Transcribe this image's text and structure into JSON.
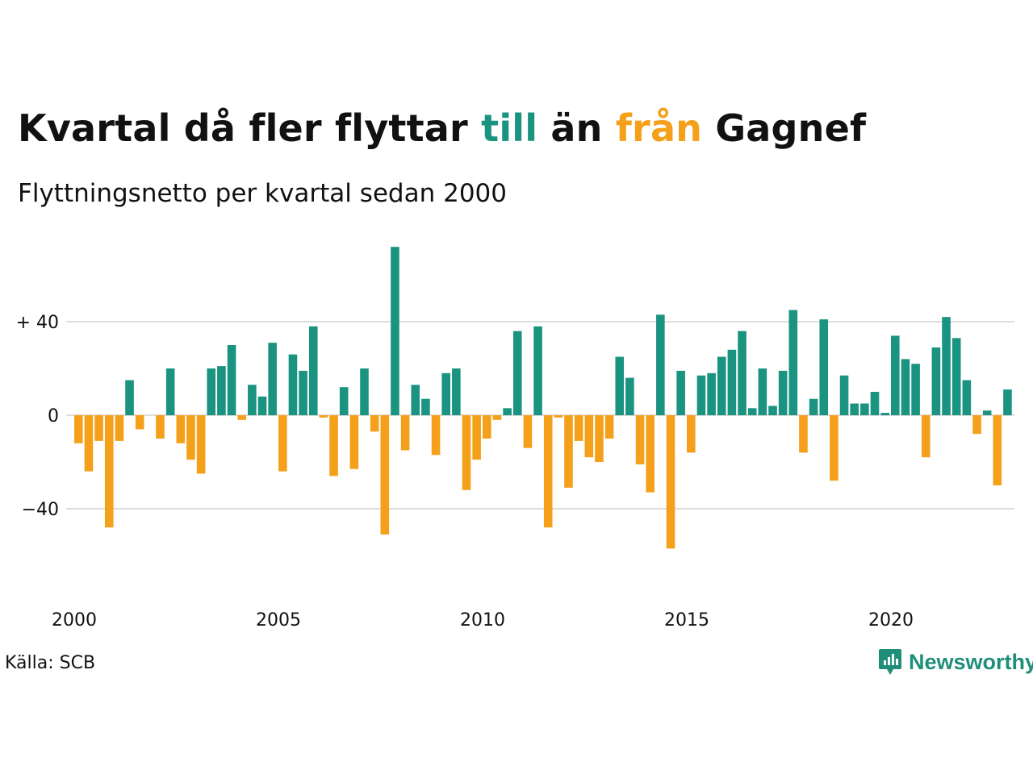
{
  "header": {
    "title_parts": [
      {
        "text": "Kvartal då fler flyttar ",
        "color": "#111111"
      },
      {
        "text": "till",
        "color": "#1a9480"
      },
      {
        "text": " än ",
        "color": "#111111"
      },
      {
        "text": "från",
        "color": "#f5a01a"
      },
      {
        "text": " Gagnef",
        "color": "#111111"
      }
    ],
    "subtitle": "Flyttningsnetto per kvartal sedan 2000"
  },
  "footer": {
    "source": "Källa: SCB",
    "logo_text": "Newsworthy",
    "logo_icon": "newsworthy-chart-bubble-icon"
  },
  "colors": {
    "positive": "#1a9480",
    "negative": "#f5a01a",
    "grid": "#dddddd",
    "text": "#111111"
  },
  "chart_data": {
    "type": "bar",
    "title": "Kvartal då fler flyttar till än från Gagnef",
    "subtitle": "Flyttningsnetto per kvartal sedan 2000",
    "xlabel": "",
    "ylabel": "",
    "ylim": [
      -60,
      75
    ],
    "y_ticks": [
      {
        "value": 40,
        "label": "+ 40"
      },
      {
        "value": 0,
        "label": "0"
      },
      {
        "value": -40,
        "label": "−40"
      }
    ],
    "x_ticks": [
      {
        "year": 2000,
        "label": "2000"
      },
      {
        "year": 2005,
        "label": "2005"
      },
      {
        "year": 2010,
        "label": "2010"
      },
      {
        "year": 2015,
        "label": "2015"
      },
      {
        "year": 2020,
        "label": "2020"
      }
    ],
    "start_year": 2000,
    "grid": true,
    "values": [
      -12,
      -24,
      -11,
      -48,
      -11,
      15,
      -6,
      0,
      -10,
      20,
      -12,
      -19,
      -25,
      20,
      21,
      30,
      -2,
      13,
      8,
      31,
      -24,
      26,
      19,
      38,
      -1,
      -26,
      12,
      -23,
      20,
      -7,
      -51,
      72,
      -15,
      13,
      7,
      -17,
      18,
      20,
      -32,
      -19,
      -10,
      -2,
      3,
      36,
      -14,
      38,
      -48,
      -1,
      -31,
      -11,
      -18,
      -20,
      -10,
      25,
      16,
      -21,
      -33,
      43,
      -57,
      19,
      -16,
      17,
      18,
      25,
      28,
      36,
      3,
      20,
      4,
      19,
      45,
      -16,
      7,
      41,
      -28,
      17,
      5,
      5,
      10,
      1,
      34,
      24,
      22,
      -18,
      29,
      42,
      33,
      15,
      -8,
      2,
      -30,
      11
    ]
  }
}
